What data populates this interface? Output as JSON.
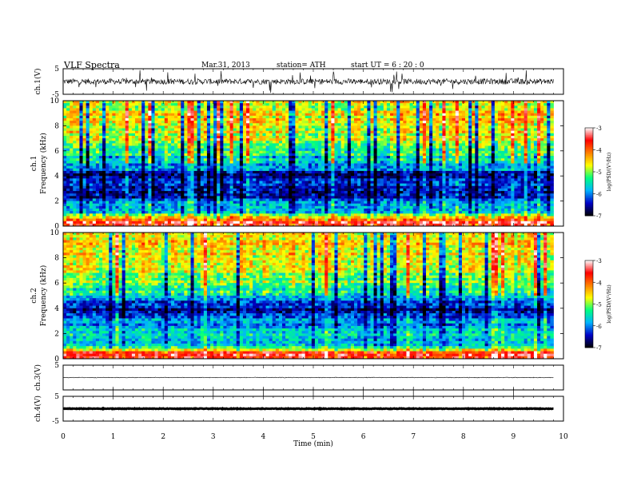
{
  "header": {
    "title": "VLF  Spectra",
    "date": "Mar.31, 2013",
    "station": "station= ATH",
    "start": "start  UT =   6  : 20 : 0"
  },
  "chart_data": [
    {
      "type": "line",
      "name": "ch1-waveform",
      "ylabel": "ch.1(V)",
      "ylim": [
        -5,
        5
      ],
      "yticks": [
        "5",
        "-5"
      ],
      "x_range_min": [
        0,
        9.8
      ],
      "description_level": "noisy waveform around 0 V with frequent spikes",
      "color": "#000000"
    },
    {
      "type": "heatmap",
      "name": "ch1-spectrogram",
      "ylabel": "ch.1\nFrequency (kHz)",
      "ylabel_lines": [
        "ch.1",
        "Frequency  (kHz)"
      ],
      "ylim": [
        0,
        10
      ],
      "yticks": [
        "0",
        "2",
        "4",
        "6",
        "8",
        "10"
      ],
      "x_range_min": [
        0,
        9.8
      ],
      "colorbar": {
        "label": "log(PSD/(V²/Hz)",
        "range": [
          -7,
          -3
        ],
        "ticks": [
          "-3",
          "-4",
          "-5",
          "-6",
          "-7"
        ],
        "colors": [
          "#000000",
          "#0000c8",
          "#00b4ff",
          "#00ff80",
          "#ffff00",
          "#ff8000",
          "#ff0000",
          "#ffffff"
        ]
      },
      "profile_log_psd": [
        {
          "freq_khz": 0.4,
          "value": -3.5
        },
        {
          "freq_khz": 1.0,
          "value": -5.5
        },
        {
          "freq_khz": 2.5,
          "value": -6.5
        },
        {
          "freq_khz": 4.0,
          "value": -6.5
        },
        {
          "freq_khz": 5.0,
          "value": -5.8
        },
        {
          "freq_khz": 6.5,
          "value": -5.0
        },
        {
          "freq_khz": 8.5,
          "value": -4.5
        },
        {
          "freq_khz": 10.0,
          "value": -4.8
        }
      ]
    },
    {
      "type": "heatmap",
      "name": "ch2-spectrogram",
      "ylabel": "ch.2\nFrequency (kHz)",
      "ylabel_lines": [
        "ch.2",
        "Frequency  (kHz)"
      ],
      "ylim": [
        0,
        10
      ],
      "yticks": [
        "0",
        "2",
        "4",
        "6",
        "8",
        "10"
      ],
      "x_range_min": [
        0,
        9.8
      ],
      "colorbar": {
        "label": "log(PSD/(V²/Hz)",
        "range": [
          -7,
          -3
        ],
        "ticks": [
          "-3",
          "-4",
          "-5",
          "-6",
          "-7"
        ],
        "colors": [
          "#000000",
          "#0000c8",
          "#00b4ff",
          "#00ff80",
          "#ffff00",
          "#ff8000",
          "#ff0000",
          "#ffffff"
        ]
      },
      "profile_log_psd": [
        {
          "freq_khz": 0.4,
          "value": -3.5
        },
        {
          "freq_khz": 1.0,
          "value": -5.5
        },
        {
          "freq_khz": 2.5,
          "value": -5.8
        },
        {
          "freq_khz": 4.0,
          "value": -6.5
        },
        {
          "freq_khz": 5.0,
          "value": -5.5
        },
        {
          "freq_khz": 6.5,
          "value": -5.0
        },
        {
          "freq_khz": 8.5,
          "value": -4.5
        },
        {
          "freq_khz": 10.0,
          "value": -4.6
        }
      ]
    },
    {
      "type": "line",
      "name": "ch3-waveform",
      "ylabel": "ch.3(V)",
      "ylim": [
        -5,
        5
      ],
      "yticks": [
        "5"
      ],
      "x_range_min": [
        0,
        9.8
      ],
      "level_v": 0
    },
    {
      "type": "line",
      "name": "ch4-waveform",
      "ylabel": "ch.4(V)",
      "ylim": [
        -5,
        5
      ],
      "yticks": [
        "5",
        "-5"
      ],
      "x_range_min": [
        0,
        9.8
      ],
      "level_v": 0
    }
  ],
  "xaxis": {
    "label": "Time  (min)",
    "xlim": [
      0,
      10
    ],
    "ticks": [
      "0",
      "1",
      "2",
      "3",
      "4",
      "5",
      "6",
      "7",
      "8",
      "9",
      "10"
    ]
  }
}
